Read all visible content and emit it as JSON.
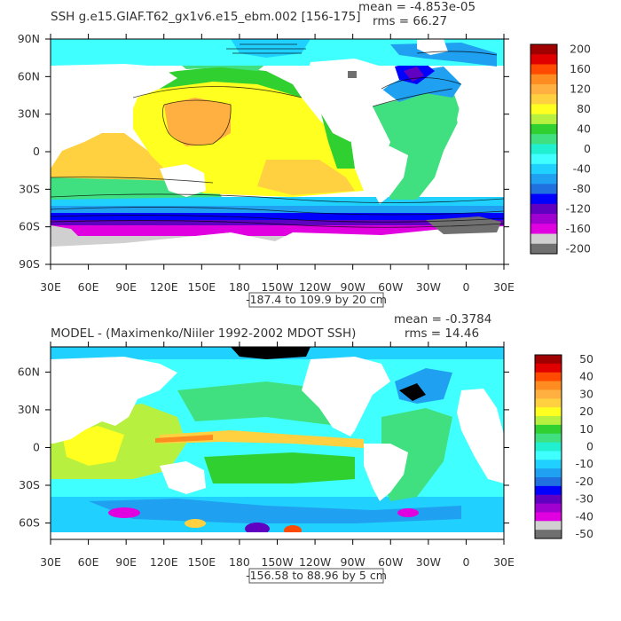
{
  "chart_data": [
    {
      "type": "heatmap",
      "title": "SSH g.e15.GIAF.T62_gx1v6.e15_ebm.002 [156-175]",
      "stats": {
        "mean": "mean = -4.853e-05",
        "rms": "rms = 66.27"
      },
      "range_note": "-187.4 to 109.9 by 20 cm",
      "xticks": [
        "30E",
        "60E",
        "90E",
        "120E",
        "150E",
        "180",
        "150W",
        "120W",
        "90W",
        "60W",
        "30W",
        "0",
        "30E"
      ],
      "yticks": [
        "90N",
        "60N",
        "30N",
        "0",
        "30S",
        "60S",
        "90S"
      ],
      "xlim": [
        30,
        390
      ],
      "ylim": [
        -90,
        90
      ],
      "colorbar": {
        "labels": [
          "200",
          "160",
          "120",
          "80",
          "40",
          "0",
          "-40",
          "-80",
          "-120",
          "-160",
          "-200"
        ],
        "colors": [
          "#a00000",
          "#e00000",
          "#ff4a00",
          "#ff8c20",
          "#ffb040",
          "#ffd040",
          "#ffff20",
          "#b8f040",
          "#30d030",
          "#40e080",
          "#20f0d0",
          "#40ffff",
          "#20d0ff",
          "#20a0f0",
          "#2070e0",
          "#0000ff",
          "#6000c0",
          "#a000d0",
          "#e000e0",
          "#d0d0d0",
          "#707070"
        ]
      }
    },
    {
      "type": "heatmap",
      "title": "MODEL - (Maximenko/Niiler 1992-2002 MDOT SSH)",
      "stats": {
        "mean": "mean = -0.3784",
        "rms": "rms = 14.46"
      },
      "range_note": "-156.58 to 88.96 by 5 cm",
      "xticks": [
        "30E",
        "60E",
        "90E",
        "120E",
        "150E",
        "180",
        "150W",
        "120W",
        "90W",
        "60W",
        "30W",
        "0",
        "30E"
      ],
      "yticks": [
        "60N",
        "30N",
        "0",
        "30S",
        "60S"
      ],
      "xlim": [
        30,
        390
      ],
      "ylim": [
        -73,
        80
      ],
      "colorbar": {
        "labels": [
          "50",
          "40",
          "30",
          "20",
          "10",
          "0",
          "-10",
          "-20",
          "-30",
          "-40",
          "-50"
        ],
        "colors": [
          "#a00000",
          "#e00000",
          "#ff4a00",
          "#ff8c20",
          "#ffb040",
          "#ffd040",
          "#ffff20",
          "#b8f040",
          "#30d030",
          "#40e080",
          "#20f0d0",
          "#40ffff",
          "#20d0ff",
          "#20a0f0",
          "#2070e0",
          "#0000ff",
          "#6000c0",
          "#a000d0",
          "#e000e0",
          "#d0d0d0",
          "#707070"
        ]
      }
    }
  ]
}
